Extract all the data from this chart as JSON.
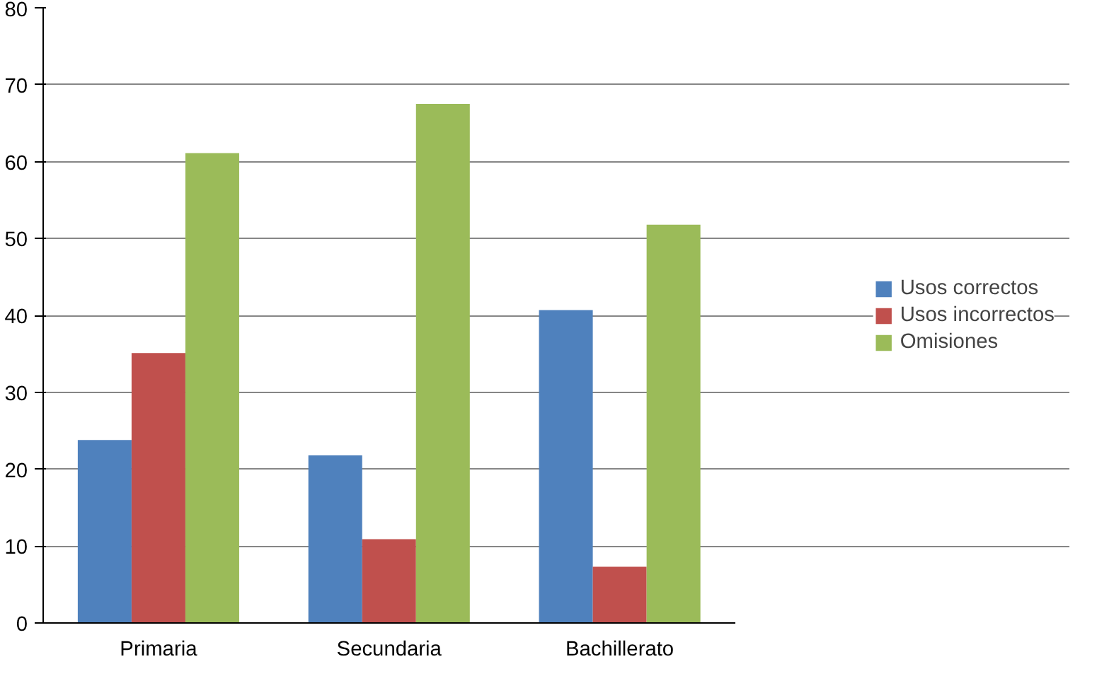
{
  "chart_data": {
    "type": "bar",
    "categories": [
      "Primaria",
      "Secundaria",
      "Bachillerato"
    ],
    "series": [
      {
        "name": "Usos correctos",
        "color": "#4f81bd",
        "values": [
          23.8,
          21.8,
          40.7
        ]
      },
      {
        "name": "Usos incorrectos",
        "color": "#c0504d",
        "values": [
          35.1,
          10.9,
          7.3
        ]
      },
      {
        "name": "Omisiones",
        "color": "#9bbb59",
        "values": [
          61.1,
          67.5,
          51.8
        ]
      }
    ],
    "ylim": [
      0,
      80
    ],
    "yticks": [
      0,
      10,
      20,
      30,
      40,
      50,
      60,
      70,
      80
    ],
    "grid": "y",
    "legend": "right"
  }
}
